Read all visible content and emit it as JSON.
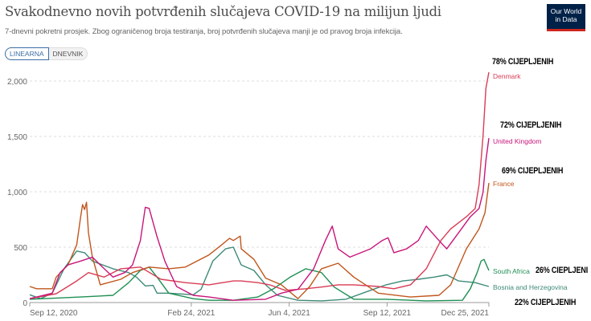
{
  "header": {
    "title": "Svakodnevno novih potvrđenih slučajeva COVID-19 na milijun ljudi",
    "subtitle": "7-dnevni pokretni prosjek. Zbog ograničenog broja testiranja, broj potvrđenih slučajeva manji je od pravog broja infekcija.",
    "logo_text": "Our World in Data",
    "logo_line1": "Our World",
    "logo_line2": "in Data"
  },
  "toggle": {
    "linear": "LINEARNA",
    "log": "DNEVNIK"
  },
  "annotations": {
    "denmark": "78% CIJEPLJENIH",
    "uk": "72% CIJEPLJENIH",
    "france": "69% CIJEPLJENIH",
    "south_africa": "26% CIEPLJENI",
    "bosnia": "22% CIJEPLJENIH"
  },
  "chart_data": {
    "type": "line",
    "title": "Svakodnevno novih potvrđenih slučajeva COVID-19 na milijun ljudi",
    "x_unit": "days since Sep 12, 2020",
    "xlim": [
      0,
      470
    ],
    "ylim": [
      0,
      2000
    ],
    "grid": true,
    "y_ticks": [
      {
        "v": 0,
        "label": "0"
      },
      {
        "v": 500,
        "label": "500"
      },
      {
        "v": 1000,
        "label": "1,000"
      },
      {
        "v": 1500,
        "label": "1,500"
      },
      {
        "v": 2000,
        "label": "2,000"
      }
    ],
    "x_ticks": [
      {
        "d": 0,
        "label": "Sep 12, 2020"
      },
      {
        "d": 165,
        "label": "Feb 24, 2021"
      },
      {
        "d": 265,
        "label": "Jun 4, 2021"
      },
      {
        "d": 365,
        "label": "Sep 12, 2021"
      },
      {
        "d": 469,
        "label": "Dec 25, 2021"
      }
    ],
    "series": [
      {
        "name": "Bosnia and Herzegovina",
        "color": "#3d8a78",
        "points": [
          [
            0,
            70
          ],
          [
            11,
            35
          ],
          [
            23,
            85
          ],
          [
            35,
            305
          ],
          [
            48,
            465
          ],
          [
            56,
            450
          ],
          [
            64,
            375
          ],
          [
            85,
            305
          ],
          [
            101,
            270
          ],
          [
            109,
            230
          ],
          [
            118,
            150
          ],
          [
            126,
            155
          ],
          [
            130,
            85
          ],
          [
            142,
            85
          ],
          [
            167,
            70
          ],
          [
            175,
            120
          ],
          [
            187,
            375
          ],
          [
            200,
            485
          ],
          [
            208,
            500
          ],
          [
            216,
            340
          ],
          [
            229,
            290
          ],
          [
            241,
            160
          ],
          [
            253,
            65
          ],
          [
            274,
            20
          ],
          [
            298,
            15
          ],
          [
            323,
            30
          ],
          [
            348,
            110
          ],
          [
            364,
            160
          ],
          [
            381,
            195
          ],
          [
            397,
            210
          ],
          [
            413,
            230
          ],
          [
            426,
            250
          ],
          [
            438,
            195
          ],
          [
            455,
            180
          ],
          [
            469,
            145
          ]
        ]
      },
      {
        "name": "South Africa",
        "color": "#1e8f52",
        "points": [
          [
            0,
            30
          ],
          [
            52,
            50
          ],
          [
            85,
            65
          ],
          [
            101,
            180
          ],
          [
            113,
            290
          ],
          [
            122,
            320
          ],
          [
            130,
            230
          ],
          [
            142,
            85
          ],
          [
            167,
            35
          ],
          [
            183,
            20
          ],
          [
            208,
            20
          ],
          [
            233,
            50
          ],
          [
            249,
            125
          ],
          [
            266,
            230
          ],
          [
            282,
            305
          ],
          [
            298,
            270
          ],
          [
            311,
            140
          ],
          [
            331,
            30
          ],
          [
            364,
            30
          ],
          [
            405,
            15
          ],
          [
            442,
            20
          ],
          [
            450,
            125
          ],
          [
            457,
            270
          ],
          [
            461,
            375
          ],
          [
            464,
            390
          ],
          [
            469,
            290
          ]
        ]
      },
      {
        "name": "France",
        "color": "#c0561c",
        "points": [
          [
            0,
            145
          ],
          [
            7,
            125
          ],
          [
            23,
            125
          ],
          [
            27,
            230
          ],
          [
            39,
            340
          ],
          [
            48,
            520
          ],
          [
            52,
            775
          ],
          [
            54,
            885
          ],
          [
            56,
            840
          ],
          [
            58,
            905
          ],
          [
            60,
            630
          ],
          [
            64,
            410
          ],
          [
            72,
            160
          ],
          [
            93,
            210
          ],
          [
            105,
            270
          ],
          [
            122,
            320
          ],
          [
            142,
            305
          ],
          [
            159,
            320
          ],
          [
            183,
            430
          ],
          [
            196,
            520
          ],
          [
            204,
            580
          ],
          [
            208,
            560
          ],
          [
            215,
            600
          ],
          [
            216,
            485
          ],
          [
            229,
            390
          ],
          [
            241,
            220
          ],
          [
            257,
            160
          ],
          [
            274,
            35
          ],
          [
            286,
            145
          ],
          [
            298,
            305
          ],
          [
            315,
            355
          ],
          [
            331,
            230
          ],
          [
            356,
            85
          ],
          [
            389,
            50
          ],
          [
            418,
            65
          ],
          [
            430,
            160
          ],
          [
            446,
            485
          ],
          [
            459,
            665
          ],
          [
            465,
            810
          ],
          [
            469,
            1080
          ]
        ]
      },
      {
        "name": "Denmark",
        "color": "#d93c55",
        "points": [
          [
            0,
            35
          ],
          [
            27,
            80
          ],
          [
            48,
            195
          ],
          [
            60,
            270
          ],
          [
            76,
            230
          ],
          [
            93,
            305
          ],
          [
            113,
            320
          ],
          [
            134,
            210
          ],
          [
            159,
            180
          ],
          [
            183,
            160
          ],
          [
            208,
            195
          ],
          [
            216,
            195
          ],
          [
            233,
            180
          ],
          [
            245,
            160
          ],
          [
            261,
            110
          ],
          [
            282,
            125
          ],
          [
            298,
            140
          ],
          [
            315,
            160
          ],
          [
            331,
            160
          ],
          [
            356,
            145
          ],
          [
            372,
            125
          ],
          [
            389,
            160
          ],
          [
            405,
            305
          ],
          [
            420,
            560
          ],
          [
            430,
            665
          ],
          [
            446,
            775
          ],
          [
            455,
            850
          ],
          [
            459,
            1065
          ],
          [
            463,
            1500
          ],
          [
            466,
            1935
          ],
          [
            469,
            2080
          ]
        ]
      },
      {
        "name": "United Kingdom",
        "color": "#c8157a",
        "points": [
          [
            0,
            35
          ],
          [
            23,
            85
          ],
          [
            31,
            270
          ],
          [
            39,
            340
          ],
          [
            52,
            375
          ],
          [
            64,
            410
          ],
          [
            72,
            340
          ],
          [
            85,
            230
          ],
          [
            97,
            270
          ],
          [
            105,
            340
          ],
          [
            113,
            560
          ],
          [
            118,
            860
          ],
          [
            122,
            850
          ],
          [
            130,
            595
          ],
          [
            138,
            375
          ],
          [
            150,
            145
          ],
          [
            167,
            65
          ],
          [
            183,
            50
          ],
          [
            208,
            20
          ],
          [
            241,
            30
          ],
          [
            257,
            85
          ],
          [
            274,
            120
          ],
          [
            290,
            305
          ],
          [
            302,
            560
          ],
          [
            309,
            690
          ],
          [
            315,
            485
          ],
          [
            327,
            410
          ],
          [
            348,
            485
          ],
          [
            360,
            560
          ],
          [
            366,
            585
          ],
          [
            372,
            450
          ],
          [
            385,
            485
          ],
          [
            397,
            560
          ],
          [
            405,
            690
          ],
          [
            418,
            560
          ],
          [
            426,
            485
          ],
          [
            438,
            630
          ],
          [
            450,
            775
          ],
          [
            459,
            850
          ],
          [
            463,
            995
          ],
          [
            466,
            1285
          ],
          [
            469,
            1485
          ]
        ]
      }
    ],
    "series_labels": [
      "Denmark",
      "United Kingdom",
      "France",
      "South Africa",
      "Bosnia and Herzegovina"
    ]
  }
}
